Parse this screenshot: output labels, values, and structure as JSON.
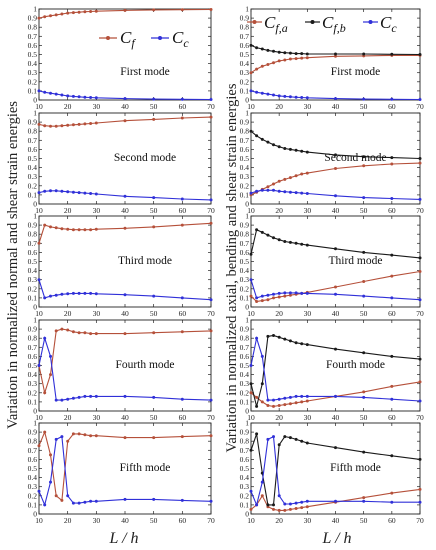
{
  "figure": {
    "left_ylabel": "Variation in normalized normal and shear strain energies",
    "right_ylabel": "Variation in normalized axial, bending and shear strain energies",
    "xlabel": "L / h"
  },
  "colors": {
    "red": "#b5503a",
    "black": "#1a1a1a",
    "blue": "#3030d8",
    "axis": "#222222"
  },
  "chart_data": [
    {
      "type": "line",
      "column": "left",
      "row": 0,
      "title": "First mode",
      "xlabel": "",
      "ylabel": "",
      "x": [
        10,
        12,
        14,
        16,
        18,
        20,
        22,
        24,
        26,
        28,
        30,
        40,
        50,
        60,
        70
      ],
      "xlim": [
        10,
        70
      ],
      "ylim": [
        0,
        1
      ],
      "xticks": [
        10,
        20,
        30,
        40,
        50,
        60,
        70
      ],
      "yticks": [
        0,
        0.1,
        0.2,
        0.3,
        0.4,
        0.5,
        0.6,
        0.7,
        0.8,
        0.9,
        1
      ],
      "legend": {
        "position": "top-right",
        "entries": [
          {
            "label": "Cf",
            "series": 0
          },
          {
            "label": "Cc",
            "series": 1
          }
        ]
      },
      "series": [
        {
          "name": "Cf",
          "color": "red",
          "values": [
            0.9,
            0.915,
            0.925,
            0.935,
            0.945,
            0.955,
            0.96,
            0.965,
            0.97,
            0.973,
            0.976,
            0.985,
            0.99,
            0.992,
            0.994
          ]
        },
        {
          "name": "Cc",
          "color": "blue",
          "values": [
            0.1,
            0.085,
            0.075,
            0.065,
            0.055,
            0.045,
            0.04,
            0.035,
            0.03,
            0.027,
            0.024,
            0.015,
            0.01,
            0.008,
            0.006
          ]
        }
      ]
    },
    {
      "type": "line",
      "column": "left",
      "row": 1,
      "title": "Second mode",
      "xlabel": "",
      "ylabel": "",
      "x": [
        10,
        12,
        14,
        16,
        18,
        20,
        22,
        24,
        26,
        28,
        30,
        40,
        50,
        60,
        70
      ],
      "xlim": [
        10,
        70
      ],
      "ylim": [
        0,
        1
      ],
      "xticks": [
        10,
        20,
        30,
        40,
        50,
        60,
        70
      ],
      "yticks": [
        0,
        0.1,
        0.2,
        0.3,
        0.4,
        0.5,
        0.6,
        0.7,
        0.8,
        0.9,
        1
      ],
      "series": [
        {
          "name": "Cf",
          "color": "red",
          "values": [
            0.875,
            0.86,
            0.855,
            0.855,
            0.86,
            0.865,
            0.87,
            0.875,
            0.88,
            0.885,
            0.89,
            0.915,
            0.93,
            0.945,
            0.955
          ]
        },
        {
          "name": "Cc",
          "color": "blue",
          "values": [
            0.125,
            0.14,
            0.145,
            0.145,
            0.14,
            0.135,
            0.13,
            0.125,
            0.12,
            0.115,
            0.11,
            0.085,
            0.07,
            0.055,
            0.045
          ]
        }
      ]
    },
    {
      "type": "line",
      "column": "left",
      "row": 2,
      "title": "Third mode",
      "xlabel": "",
      "ylabel": "",
      "x": [
        10,
        12,
        14,
        16,
        18,
        20,
        22,
        24,
        26,
        28,
        30,
        40,
        50,
        60,
        70
      ],
      "xlim": [
        10,
        70
      ],
      "ylim": [
        0,
        1
      ],
      "xticks": [
        10,
        20,
        30,
        40,
        50,
        60,
        70
      ],
      "yticks": [
        0,
        0.1,
        0.2,
        0.3,
        0.4,
        0.5,
        0.6,
        0.7,
        0.8,
        0.9,
        1
      ],
      "series": [
        {
          "name": "Cf",
          "color": "red",
          "values": [
            0.7,
            0.9,
            0.88,
            0.87,
            0.86,
            0.855,
            0.85,
            0.85,
            0.85,
            0.85,
            0.855,
            0.865,
            0.88,
            0.9,
            0.92
          ]
        },
        {
          "name": "Cc",
          "color": "blue",
          "values": [
            0.3,
            0.1,
            0.12,
            0.13,
            0.14,
            0.145,
            0.15,
            0.15,
            0.15,
            0.15,
            0.145,
            0.135,
            0.12,
            0.1,
            0.08
          ]
        }
      ]
    },
    {
      "type": "line",
      "column": "left",
      "row": 3,
      "title": "Fourth mode",
      "xlabel": "",
      "ylabel": "",
      "x": [
        10,
        12,
        14,
        16,
        18,
        20,
        22,
        24,
        26,
        28,
        30,
        40,
        50,
        60,
        70
      ],
      "xlim": [
        10,
        70
      ],
      "ylim": [
        0,
        1
      ],
      "xticks": [
        10,
        20,
        30,
        40,
        50,
        60,
        70
      ],
      "yticks": [
        0,
        0.1,
        0.2,
        0.3,
        0.4,
        0.5,
        0.6,
        0.7,
        0.8,
        0.9,
        1
      ],
      "series": [
        {
          "name": "Cf",
          "color": "red",
          "values": [
            0.5,
            0.2,
            0.4,
            0.88,
            0.9,
            0.89,
            0.87,
            0.86,
            0.86,
            0.85,
            0.85,
            0.85,
            0.86,
            0.87,
            0.88
          ]
        },
        {
          "name": "Cc",
          "color": "blue",
          "values": [
            0.5,
            0.8,
            0.6,
            0.12,
            0.12,
            0.13,
            0.14,
            0.15,
            0.16,
            0.16,
            0.16,
            0.16,
            0.15,
            0.13,
            0.12
          ]
        }
      ]
    },
    {
      "type": "line",
      "column": "left",
      "row": 4,
      "title": "Fifth mode",
      "xlabel": "",
      "ylabel": "",
      "x": [
        10,
        12,
        14,
        16,
        18,
        20,
        22,
        24,
        26,
        28,
        30,
        40,
        50,
        60,
        70
      ],
      "xlim": [
        10,
        70
      ],
      "ylim": [
        0,
        1
      ],
      "xticks": [
        10,
        20,
        30,
        40,
        50,
        60,
        70
      ],
      "yticks": [
        0,
        0.1,
        0.2,
        0.3,
        0.4,
        0.5,
        0.6,
        0.7,
        0.8,
        0.9,
        1
      ],
      "series": [
        {
          "name": "Cf",
          "color": "red",
          "values": [
            0.75,
            0.9,
            0.65,
            0.2,
            0.15,
            0.8,
            0.88,
            0.88,
            0.87,
            0.86,
            0.86,
            0.84,
            0.84,
            0.85,
            0.86
          ]
        },
        {
          "name": "Cc",
          "color": "blue",
          "values": [
            0.25,
            0.1,
            0.35,
            0.82,
            0.85,
            0.2,
            0.12,
            0.12,
            0.13,
            0.14,
            0.14,
            0.16,
            0.16,
            0.15,
            0.14
          ]
        }
      ]
    },
    {
      "type": "line",
      "column": "right",
      "row": 0,
      "title": "First mode",
      "xlabel": "",
      "ylabel": "",
      "x": [
        10,
        12,
        14,
        16,
        18,
        20,
        22,
        24,
        26,
        28,
        30,
        40,
        50,
        60,
        70
      ],
      "xlim": [
        10,
        70
      ],
      "ylim": [
        0,
        1
      ],
      "xticks": [
        10,
        20,
        30,
        40,
        50,
        60,
        70
      ],
      "yticks": [
        0,
        0.1,
        0.2,
        0.3,
        0.4,
        0.5,
        0.6,
        0.7,
        0.8,
        0.9,
        1
      ],
      "legend": {
        "position": "top",
        "entries": [
          {
            "label": "Cf,a",
            "series": 0
          },
          {
            "label": "Cf,b",
            "series": 1
          },
          {
            "label": "Cc",
            "series": 2
          }
        ]
      },
      "series": [
        {
          "name": "Cf,a",
          "color": "red",
          "values": [
            0.3,
            0.34,
            0.37,
            0.39,
            0.41,
            0.43,
            0.44,
            0.45,
            0.455,
            0.46,
            0.465,
            0.48,
            0.485,
            0.49,
            0.49
          ]
        },
        {
          "name": "Cf,b",
          "color": "black",
          "values": [
            0.6,
            0.575,
            0.56,
            0.545,
            0.535,
            0.525,
            0.52,
            0.515,
            0.51,
            0.51,
            0.505,
            0.505,
            0.505,
            0.502,
            0.5
          ]
        },
        {
          "name": "Cc",
          "color": "blue",
          "values": [
            0.1,
            0.085,
            0.075,
            0.065,
            0.055,
            0.045,
            0.04,
            0.035,
            0.03,
            0.027,
            0.024,
            0.015,
            0.01,
            0.008,
            0.006
          ]
        }
      ]
    },
    {
      "type": "line",
      "column": "right",
      "row": 1,
      "title": "Second mode",
      "xlabel": "",
      "ylabel": "",
      "x": [
        10,
        12,
        14,
        16,
        18,
        20,
        22,
        24,
        26,
        28,
        30,
        40,
        50,
        60,
        70
      ],
      "xlim": [
        10,
        70
      ],
      "ylim": [
        0,
        1
      ],
      "xticks": [
        10,
        20,
        30,
        40,
        50,
        60,
        70
      ],
      "yticks": [
        0,
        0.1,
        0.2,
        0.3,
        0.4,
        0.5,
        0.6,
        0.7,
        0.8,
        0.9,
        1
      ],
      "series": [
        {
          "name": "Cf,a",
          "color": "red",
          "values": [
            0.1,
            0.13,
            0.16,
            0.19,
            0.22,
            0.25,
            0.27,
            0.29,
            0.31,
            0.33,
            0.34,
            0.39,
            0.42,
            0.44,
            0.45
          ]
        },
        {
          "name": "Cf,b",
          "color": "black",
          "values": [
            0.8,
            0.75,
            0.71,
            0.68,
            0.65,
            0.63,
            0.61,
            0.6,
            0.59,
            0.58,
            0.57,
            0.54,
            0.52,
            0.51,
            0.5
          ]
        },
        {
          "name": "Cc",
          "color": "blue",
          "values": [
            0.12,
            0.14,
            0.15,
            0.15,
            0.15,
            0.14,
            0.135,
            0.13,
            0.125,
            0.12,
            0.115,
            0.09,
            0.07,
            0.06,
            0.05
          ]
        }
      ]
    },
    {
      "type": "line",
      "column": "right",
      "row": 2,
      "title": "Third mode",
      "xlabel": "",
      "ylabel": "",
      "x": [
        10,
        12,
        14,
        16,
        18,
        20,
        22,
        24,
        26,
        28,
        30,
        40,
        50,
        60,
        70
      ],
      "xlim": [
        10,
        70
      ],
      "ylim": [
        0,
        1
      ],
      "xticks": [
        10,
        20,
        30,
        40,
        50,
        60,
        70
      ],
      "yticks": [
        0,
        0.1,
        0.2,
        0.3,
        0.4,
        0.5,
        0.6,
        0.7,
        0.8,
        0.9,
        1
      ],
      "series": [
        {
          "name": "Cf,a",
          "color": "red",
          "values": [
            0.12,
            0.06,
            0.07,
            0.08,
            0.1,
            0.11,
            0.12,
            0.13,
            0.14,
            0.15,
            0.16,
            0.22,
            0.28,
            0.34,
            0.39
          ]
        },
        {
          "name": "Cf,b",
          "color": "black",
          "values": [
            0.58,
            0.85,
            0.82,
            0.79,
            0.76,
            0.74,
            0.72,
            0.71,
            0.7,
            0.69,
            0.68,
            0.64,
            0.6,
            0.57,
            0.54
          ]
        },
        {
          "name": "Cc",
          "color": "blue",
          "values": [
            0.3,
            0.1,
            0.12,
            0.13,
            0.14,
            0.15,
            0.155,
            0.155,
            0.155,
            0.15,
            0.15,
            0.14,
            0.12,
            0.1,
            0.08
          ]
        }
      ]
    },
    {
      "type": "line",
      "column": "right",
      "row": 3,
      "title": "Fourth mode",
      "xlabel": "",
      "ylabel": "",
      "x": [
        10,
        12,
        14,
        16,
        18,
        20,
        22,
        24,
        26,
        28,
        30,
        40,
        50,
        60,
        70
      ],
      "xlim": [
        10,
        70
      ],
      "ylim": [
        0,
        1
      ],
      "xticks": [
        10,
        20,
        30,
        40,
        50,
        60,
        70
      ],
      "yticks": [
        0,
        0.1,
        0.2,
        0.3,
        0.4,
        0.5,
        0.6,
        0.7,
        0.8,
        0.9,
        1
      ],
      "series": [
        {
          "name": "Cf,a",
          "color": "red",
          "values": [
            0.2,
            0.15,
            0.1,
            0.06,
            0.05,
            0.06,
            0.07,
            0.08,
            0.09,
            0.1,
            0.11,
            0.16,
            0.21,
            0.27,
            0.32
          ]
        },
        {
          "name": "Cf,b",
          "color": "black",
          "values": [
            0.3,
            0.05,
            0.3,
            0.82,
            0.83,
            0.81,
            0.79,
            0.77,
            0.75,
            0.74,
            0.73,
            0.68,
            0.64,
            0.6,
            0.57
          ]
        },
        {
          "name": "Cc",
          "color": "blue",
          "values": [
            0.5,
            0.8,
            0.6,
            0.12,
            0.12,
            0.13,
            0.14,
            0.15,
            0.16,
            0.16,
            0.16,
            0.16,
            0.15,
            0.13,
            0.11
          ]
        }
      ]
    },
    {
      "type": "line",
      "column": "right",
      "row": 4,
      "title": "Fifth mode",
      "xlabel": "",
      "ylabel": "",
      "x": [
        10,
        12,
        14,
        16,
        18,
        20,
        22,
        24,
        26,
        28,
        30,
        40,
        50,
        60,
        70
      ],
      "xlim": [
        10,
        70
      ],
      "ylim": [
        0,
        1
      ],
      "xticks": [
        10,
        20,
        30,
        40,
        50,
        60,
        70
      ],
      "yticks": [
        0,
        0.1,
        0.2,
        0.3,
        0.4,
        0.5,
        0.6,
        0.7,
        0.8,
        0.9,
        1
      ],
      "series": [
        {
          "name": "Cf,a",
          "color": "red",
          "values": [
            0.05,
            0.1,
            0.2,
            0.08,
            0.05,
            0.04,
            0.04,
            0.05,
            0.06,
            0.07,
            0.08,
            0.13,
            0.18,
            0.23,
            0.27
          ]
        },
        {
          "name": "Cf,b",
          "color": "black",
          "values": [
            0.7,
            0.88,
            0.45,
            0.1,
            0.1,
            0.76,
            0.85,
            0.84,
            0.82,
            0.8,
            0.78,
            0.73,
            0.68,
            0.64,
            0.6
          ]
        },
        {
          "name": "Cc",
          "color": "blue",
          "values": [
            0.25,
            0.1,
            0.35,
            0.82,
            0.85,
            0.2,
            0.11,
            0.11,
            0.12,
            0.13,
            0.14,
            0.14,
            0.14,
            0.13,
            0.13
          ]
        }
      ]
    }
  ]
}
